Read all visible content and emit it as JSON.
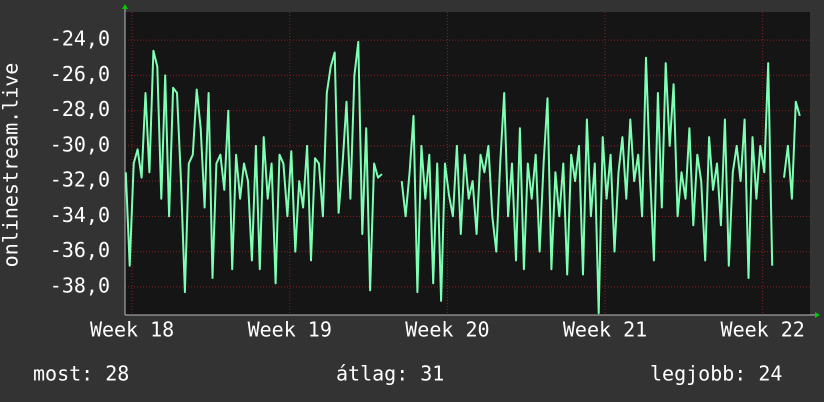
{
  "chart_data": {
    "type": "line",
    "y_label": "onlinestream.live",
    "color": "#7dffb4",
    "grid": true,
    "xlim": [
      17.955,
      22.3
    ],
    "xticks": [
      {
        "value": 18,
        "label": "Week 18"
      },
      {
        "value": 19,
        "label": "Week 19"
      },
      {
        "value": 20,
        "label": "Week 20"
      },
      {
        "value": 21,
        "label": "Week 21"
      },
      {
        "value": 22,
        "label": "Week 22"
      }
    ],
    "ylim": [
      -39.6,
      -22.4
    ],
    "yticks": [
      {
        "value": -38,
        "label": "-38,0"
      },
      {
        "value": -36,
        "label": "-36,0"
      },
      {
        "value": -34,
        "label": "-34,0"
      },
      {
        "value": -32,
        "label": "-32,0"
      },
      {
        "value": -30,
        "label": "-30,0"
      },
      {
        "value": -28,
        "label": "-28,0"
      },
      {
        "value": -26,
        "label": "-26,0"
      },
      {
        "value": -24,
        "label": "-24,0"
      }
    ],
    "x": [
      17.96,
      17.985,
      18.01,
      18.035,
      18.06,
      18.085,
      18.11,
      18.135,
      18.16,
      18.185,
      18.21,
      18.235,
      18.26,
      18.285,
      18.31,
      18.335,
      18.36,
      18.385,
      18.41,
      18.435,
      18.46,
      18.485,
      18.51,
      18.535,
      18.56,
      18.585,
      18.61,
      18.635,
      18.66,
      18.685,
      18.71,
      18.735,
      18.76,
      18.785,
      18.81,
      18.835,
      18.86,
      18.885,
      18.91,
      18.935,
      18.96,
      18.985,
      19.01,
      19.035,
      19.06,
      19.085,
      19.11,
      19.135,
      19.16,
      19.185,
      19.21,
      19.235,
      19.26,
      19.285,
      19.31,
      19.335,
      19.36,
      19.385,
      19.41,
      19.435,
      19.46,
      19.485,
      19.51,
      19.535,
      19.56,
      19.585,
      19.61,
      19.635,
      19.66,
      19.685,
      19.71,
      19.735,
      19.76,
      19.785,
      19.81,
      19.835,
      19.86,
      19.885,
      19.91,
      19.935,
      19.96,
      19.985,
      20.01,
      20.035,
      20.06,
      20.085,
      20.11,
      20.135,
      20.16,
      20.185,
      20.21,
      20.235,
      20.26,
      20.285,
      20.31,
      20.335,
      20.36,
      20.385,
      20.41,
      20.435,
      20.46,
      20.485,
      20.51,
      20.535,
      20.56,
      20.585,
      20.61,
      20.635,
      20.66,
      20.685,
      20.71,
      20.735,
      20.76,
      20.785,
      20.81,
      20.835,
      20.86,
      20.885,
      20.91,
      20.935,
      20.96,
      20.985,
      21.01,
      21.035,
      21.06,
      21.085,
      21.11,
      21.135,
      21.16,
      21.185,
      21.21,
      21.235,
      21.26,
      21.285,
      21.31,
      21.335,
      21.36,
      21.385,
      21.41,
      21.435,
      21.46,
      21.485,
      21.51,
      21.535,
      21.56,
      21.585,
      21.61,
      21.635,
      21.66,
      21.685,
      21.71,
      21.735,
      21.76,
      21.785,
      21.81,
      21.835,
      21.86,
      21.885,
      21.91,
      21.935,
      21.96,
      21.985,
      22.01,
      22.035,
      22.06,
      22.085,
      22.11,
      22.135,
      22.16,
      22.185,
      22.21,
      22.235
    ],
    "values": [
      -31.5,
      -36.8,
      -31,
      -30.2,
      -31.8,
      -27,
      -31.5,
      -24.6,
      -25.5,
      -33,
      -26,
      -34,
      -26.7,
      -27,
      -32,
      -38.3,
      -31,
      -30.5,
      -26.8,
      -29,
      -33.5,
      -27,
      -37.5,
      -31,
      -30.5,
      -32.5,
      -28,
      -37,
      -30.5,
      -33,
      -31,
      -32,
      -36.5,
      -30,
      -37,
      -29.5,
      -33,
      -31,
      -37.8,
      -30.5,
      -31,
      -34,
      -30.3,
      -36,
      -32,
      -33.5,
      -30,
      -36.5,
      -30.7,
      -31,
      -34,
      -27,
      -25.5,
      -24.7,
      -33.8,
      -31,
      -27.5,
      -33,
      -26,
      -24.1,
      -35,
      -29,
      -38.2,
      -31,
      -31.8,
      -31.6,
      null,
      null,
      null,
      null,
      -32,
      -34,
      -31.5,
      -28.3,
      -38.3,
      -30,
      -33,
      -30.5,
      -37.8,
      -31,
      -38.8,
      -31,
      -32.8,
      -34,
      -30,
      -35,
      -30.5,
      -33,
      -32,
      -35,
      -30.5,
      -31.5,
      -30,
      -34,
      -36,
      -31,
      -27,
      -34,
      -31,
      -36.5,
      -29,
      -37,
      -31,
      -33,
      -30.5,
      -36,
      -31,
      -27.3,
      -37,
      -31.5,
      -34,
      -31,
      -37.3,
      -30.5,
      -32,
      -30,
      -37.3,
      -28.5,
      -34,
      -31,
      -39.5,
      -29.5,
      -33,
      -30.5,
      -36,
      -31.5,
      -29.5,
      -33,
      -28.5,
      -32,
      -30.5,
      -34,
      -25,
      -31.5,
      -36.5,
      -27,
      -33.5,
      -25.3,
      -30,
      -26.5,
      -34,
      -31.5,
      -33,
      -29,
      -34.5,
      -30.5,
      -32,
      -36.5,
      -29.5,
      -32.5,
      -31,
      -34.5,
      -28.5,
      -36.8,
      -31.5,
      -30,
      -32,
      -28.5,
      -37.5,
      -29.5,
      -33,
      -30,
      -31.5,
      -25.3,
      -36.8,
      null,
      null,
      -31.8,
      -30,
      -33,
      -27.5,
      -28.3
    ],
    "stats": [
      {
        "label": "most:",
        "value": 28
      },
      {
        "label": "átlag:",
        "value": 31
      },
      {
        "label": "legjobb:",
        "value": 24
      }
    ]
  }
}
